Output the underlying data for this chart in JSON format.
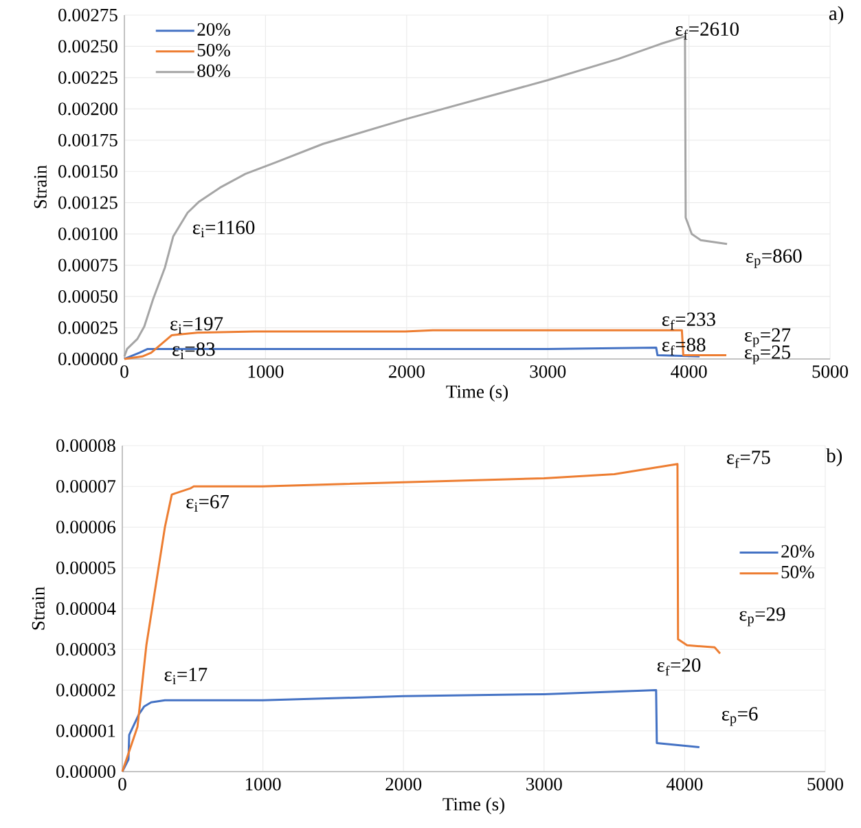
{
  "chart_data": [
    {
      "type": "line",
      "xlabel": "Time (s)",
      "ylabel": "Strain",
      "xlim": [
        0,
        5000
      ],
      "ylim": [
        0,
        0.00275
      ],
      "xticks": [
        0,
        1000,
        2000,
        3000,
        4000,
        5000
      ],
      "yticks": [
        {
          "value": 0,
          "label": "0.00000"
        },
        {
          "value": 0.00025,
          "label": "0.00025"
        },
        {
          "value": 0.0005,
          "label": "0.00050"
        },
        {
          "value": 0.00075,
          "label": "0.00075"
        },
        {
          "value": 0.001,
          "label": "0.00100"
        },
        {
          "value": 0.00125,
          "label": "0.00125"
        },
        {
          "value": 0.0015,
          "label": "0.00150"
        },
        {
          "value": 0.00175,
          "label": "0.00175"
        },
        {
          "value": 0.002,
          "label": "0.00200"
        },
        {
          "value": 0.00225,
          "label": "0.00225"
        },
        {
          "value": 0.0025,
          "label": "0.00250"
        },
        {
          "value": 0.00275,
          "label": "0.00275"
        }
      ],
      "grid": true,
      "legend": "top left",
      "line_style": "solid",
      "marker": "none",
      "series": [
        {
          "name": "20%",
          "color": "#4472c4",
          "x": [
            0,
            107,
            165,
            250,
            1000,
            2000,
            3000,
            3768,
            3777,
            4075
          ],
          "values": [
            0,
            5e-05,
            8e-05,
            8e-05,
            8e-05,
            8e-05,
            8e-05,
            9e-05,
            3e-05,
            2e-05
          ]
        },
        {
          "name": "50%",
          "color": "#ed7d31",
          "x": [
            0,
            127,
            190,
            336,
            516,
            920,
            1991,
            2185,
            3000,
            3950,
            3960,
            4265
          ],
          "values": [
            0,
            2e-05,
            5e-05,
            0.00019,
            0.00021,
            0.00022,
            0.00022,
            0.00023,
            0.00023,
            0.00023,
            3e-05,
            3e-05
          ]
        },
        {
          "name": "80%",
          "color": "#a5a5a5",
          "x": [
            0,
            19,
            92,
            141,
            204,
            287,
            346,
            394,
            448,
            531,
            677,
            857,
            1066,
            1407,
            2000,
            3000,
            3500,
            3800,
            3972,
            3977,
            4020,
            4084,
            4270
          ],
          "values": [
            2e-05,
            8e-05,
            0.00016,
            0.00026,
            0.00048,
            0.00073,
            0.00098,
            0.00107,
            0.00117,
            0.00126,
            0.00137,
            0.00148,
            0.00157,
            0.00172,
            0.00192,
            0.00223,
            0.0024,
            0.00252,
            0.00258,
            0.00113,
            0.001,
            0.00095,
            0.00092
          ]
        }
      ],
      "annotations": [
        "ε$_{i}$=1160",
        "ε$_{f}$=2610",
        "ε$_{p}$=860",
        "ε$_{i}$=197",
        "ε$_{i}$=83",
        "ε$_{f}$=233",
        "ε$_{f}$=88",
        "ε$_{p}$=27",
        "ε$_{p}$=25",
        "a)"
      ]
    },
    {
      "type": "line",
      "xlabel": "Time (s)",
      "ylabel": "Strain",
      "xlim": [
        0,
        5000
      ],
      "ylim": [
        0,
        8e-05
      ],
      "xticks": [
        0,
        1000,
        2000,
        3000,
        4000,
        5000
      ],
      "yticks": [
        {
          "value": 0,
          "label": "0.00000"
        },
        {
          "value": 1e-05,
          "label": "0.00001"
        },
        {
          "value": 2e-05,
          "label": "0.00002"
        },
        {
          "value": 3e-05,
          "label": "0.00003"
        },
        {
          "value": 4e-05,
          "label": "0.00004"
        },
        {
          "value": 5e-05,
          "label": "0.00005"
        },
        {
          "value": 6e-05,
          "label": "0.00006"
        },
        {
          "value": 7e-05,
          "label": "0.00007"
        },
        {
          "value": 8e-05,
          "label": "0.00008"
        }
      ],
      "grid": true,
      "legend": "right",
      "line_style": "solid",
      "marker": "none",
      "series": [
        {
          "name": "20%",
          "color": "#4472c4",
          "x": [
            0,
            44,
            49,
            117,
            156,
            205,
            303,
            1000,
            2000,
            3000,
            3797,
            3802,
            4105
          ],
          "values": [
            0,
            3e-06,
            9e-06,
            1.4e-05,
            1.6e-05,
            1.7e-05,
            1.75e-05,
            1.75e-05,
            1.85e-05,
            1.9e-05,
            2e-05,
            7e-06,
            6e-06
          ]
        },
        {
          "name": "50%",
          "color": "#ed7d31",
          "x": [
            0,
            108,
            171,
            303,
            352,
            484,
            508,
            1000,
            2000,
            3000,
            3500,
            3949,
            3953,
            4017,
            4213,
            4252
          ],
          "values": [
            0,
            1.1e-05,
            3.1e-05,
            6e-05,
            6.8e-05,
            6.95e-05,
            7e-05,
            7e-05,
            7.1e-05,
            7.2e-05,
            7.3e-05,
            7.55e-05,
            3.25e-05,
            3.1e-05,
            3.05e-05,
            2.9e-05
          ]
        }
      ],
      "annotations": [
        "ε$_{i}$=67",
        "ε$_{f}$=75",
        "ε$_{p}$=29",
        "ε$_{i}$=17",
        "ε$_{f}$=20",
        "ε$_{p}$=6",
        "b)"
      ]
    }
  ]
}
